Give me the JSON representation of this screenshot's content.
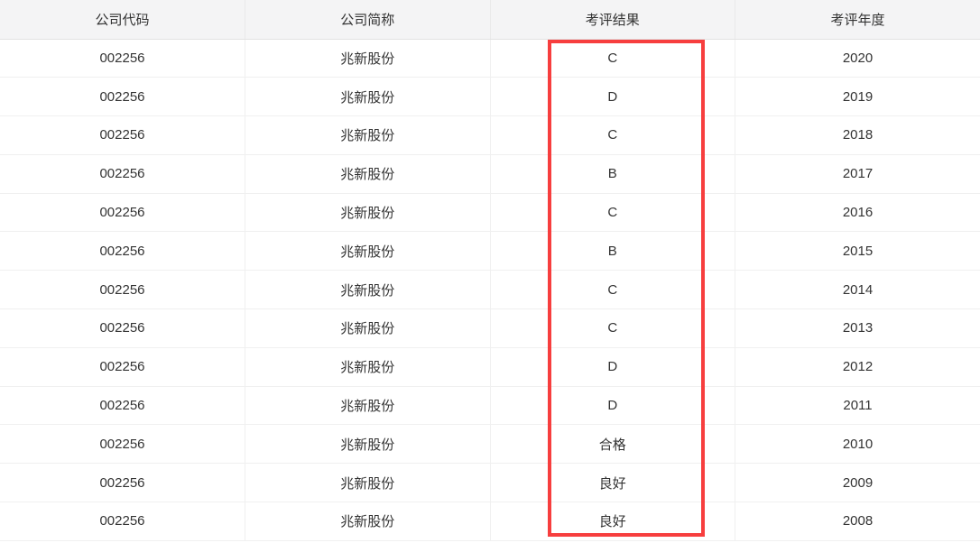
{
  "table": {
    "columns": [
      "公司代码",
      "公司简称",
      "考评结果",
      "考评年度"
    ],
    "rows": [
      {
        "code": "002256",
        "name": "兆新股份",
        "result": "C",
        "year": "2020"
      },
      {
        "code": "002256",
        "name": "兆新股份",
        "result": "D",
        "year": "2019"
      },
      {
        "code": "002256",
        "name": "兆新股份",
        "result": "C",
        "year": "2018"
      },
      {
        "code": "002256",
        "name": "兆新股份",
        "result": "B",
        "year": "2017"
      },
      {
        "code": "002256",
        "name": "兆新股份",
        "result": "C",
        "year": "2016"
      },
      {
        "code": "002256",
        "name": "兆新股份",
        "result": "B",
        "year": "2015"
      },
      {
        "code": "002256",
        "name": "兆新股份",
        "result": "C",
        "year": "2014"
      },
      {
        "code": "002256",
        "name": "兆新股份",
        "result": "C",
        "year": "2013"
      },
      {
        "code": "002256",
        "name": "兆新股份",
        "result": "D",
        "year": "2012"
      },
      {
        "code": "002256",
        "name": "兆新股份",
        "result": "D",
        "year": "2011"
      },
      {
        "code": "002256",
        "name": "兆新股份",
        "result": "合格",
        "year": "2010"
      },
      {
        "code": "002256",
        "name": "兆新股份",
        "result": "良好",
        "year": "2009"
      },
      {
        "code": "002256",
        "name": "兆新股份",
        "result": "良好",
        "year": "2008"
      }
    ]
  },
  "annotation": {
    "highlight_color": "#f73e3e"
  }
}
